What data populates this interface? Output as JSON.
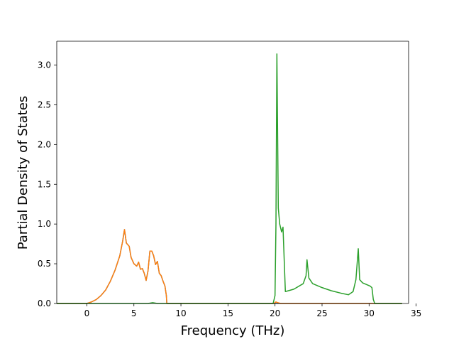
{
  "chart_data": {
    "type": "line",
    "title": "",
    "xlabel": "Frequency (THz)",
    "ylabel": "Partial Density of States",
    "xlim": [
      -3.2,
      34.2
    ],
    "ylim": [
      0,
      3.3
    ],
    "xticks": [
      0,
      5,
      10,
      15,
      20,
      25,
      30,
      35
    ],
    "xtick_labels": [
      "0",
      "5",
      "10",
      "15",
      "20",
      "25",
      "30",
      "35"
    ],
    "yticks": [
      0.0,
      0.5,
      1.0,
      1.5,
      2.0,
      2.5,
      3.0
    ],
    "ytick_labels": [
      "0.0",
      "0.5",
      "1.0",
      "1.5",
      "2.0",
      "2.5",
      "3.0"
    ],
    "grid": false,
    "legend": "none",
    "series": [
      {
        "color": "#1f77b4",
        "x": [
          -3.2,
          0.0,
          0.5,
          1.0,
          1.5,
          2.0,
          2.5,
          3.0,
          3.5,
          3.8,
          4.0,
          4.2,
          4.5,
          4.7,
          5.0,
          5.3,
          5.5,
          5.7,
          5.9,
          6.1,
          6.3,
          6.5,
          6.7,
          6.9,
          7.1,
          7.3,
          7.5,
          7.7,
          7.9,
          8.1,
          8.3,
          8.45,
          8.5,
          20.0,
          33.5
        ],
        "y": [
          0.0,
          0.0,
          0.02,
          0.05,
          0.1,
          0.17,
          0.28,
          0.42,
          0.6,
          0.78,
          0.93,
          0.76,
          0.72,
          0.58,
          0.5,
          0.47,
          0.52,
          0.43,
          0.44,
          0.38,
          0.29,
          0.41,
          0.66,
          0.66,
          0.6,
          0.49,
          0.53,
          0.38,
          0.35,
          0.28,
          0.22,
          0.1,
          0.0,
          0.0,
          0.0
        ]
      },
      {
        "color": "#ff7f0e",
        "x": [
          -3.2,
          0.0,
          0.5,
          1.0,
          1.5,
          2.0,
          2.5,
          3.0,
          3.5,
          3.8,
          4.0,
          4.2,
          4.5,
          4.7,
          5.0,
          5.3,
          5.5,
          5.7,
          5.9,
          6.1,
          6.3,
          6.5,
          6.7,
          6.9,
          7.1,
          7.3,
          7.5,
          7.7,
          7.9,
          8.1,
          8.3,
          8.45,
          8.5,
          19.9,
          20.1,
          20.3,
          20.6,
          33.5
        ],
        "y": [
          0.0,
          0.0,
          0.02,
          0.05,
          0.1,
          0.17,
          0.28,
          0.42,
          0.6,
          0.78,
          0.93,
          0.76,
          0.72,
          0.58,
          0.5,
          0.47,
          0.52,
          0.43,
          0.44,
          0.38,
          0.29,
          0.41,
          0.66,
          0.66,
          0.6,
          0.49,
          0.53,
          0.38,
          0.35,
          0.28,
          0.22,
          0.1,
          0.0,
          0.0,
          0.02,
          0.01,
          0.0,
          0.0
        ]
      },
      {
        "color": "#2ca02c",
        "x": [
          -3.2,
          6.5,
          7.0,
          7.5,
          8.0,
          19.8,
          20.0,
          20.1,
          20.2,
          20.35,
          20.5,
          20.7,
          20.85,
          21.1,
          22.0,
          23.0,
          23.3,
          23.4,
          23.6,
          24.0,
          25.0,
          26.0,
          27.0,
          27.8,
          28.3,
          28.6,
          28.85,
          29.0,
          29.3,
          29.7,
          30.1,
          30.3,
          30.45,
          30.6,
          33.5
        ],
        "y": [
          0.0,
          0.0,
          0.01,
          0.0,
          0.0,
          0.0,
          0.1,
          1.0,
          3.14,
          1.2,
          1.0,
          0.9,
          0.96,
          0.15,
          0.18,
          0.25,
          0.35,
          0.55,
          0.32,
          0.25,
          0.2,
          0.16,
          0.13,
          0.11,
          0.15,
          0.3,
          0.69,
          0.3,
          0.26,
          0.24,
          0.22,
          0.2,
          0.05,
          0.0,
          0.0
        ]
      }
    ]
  }
}
